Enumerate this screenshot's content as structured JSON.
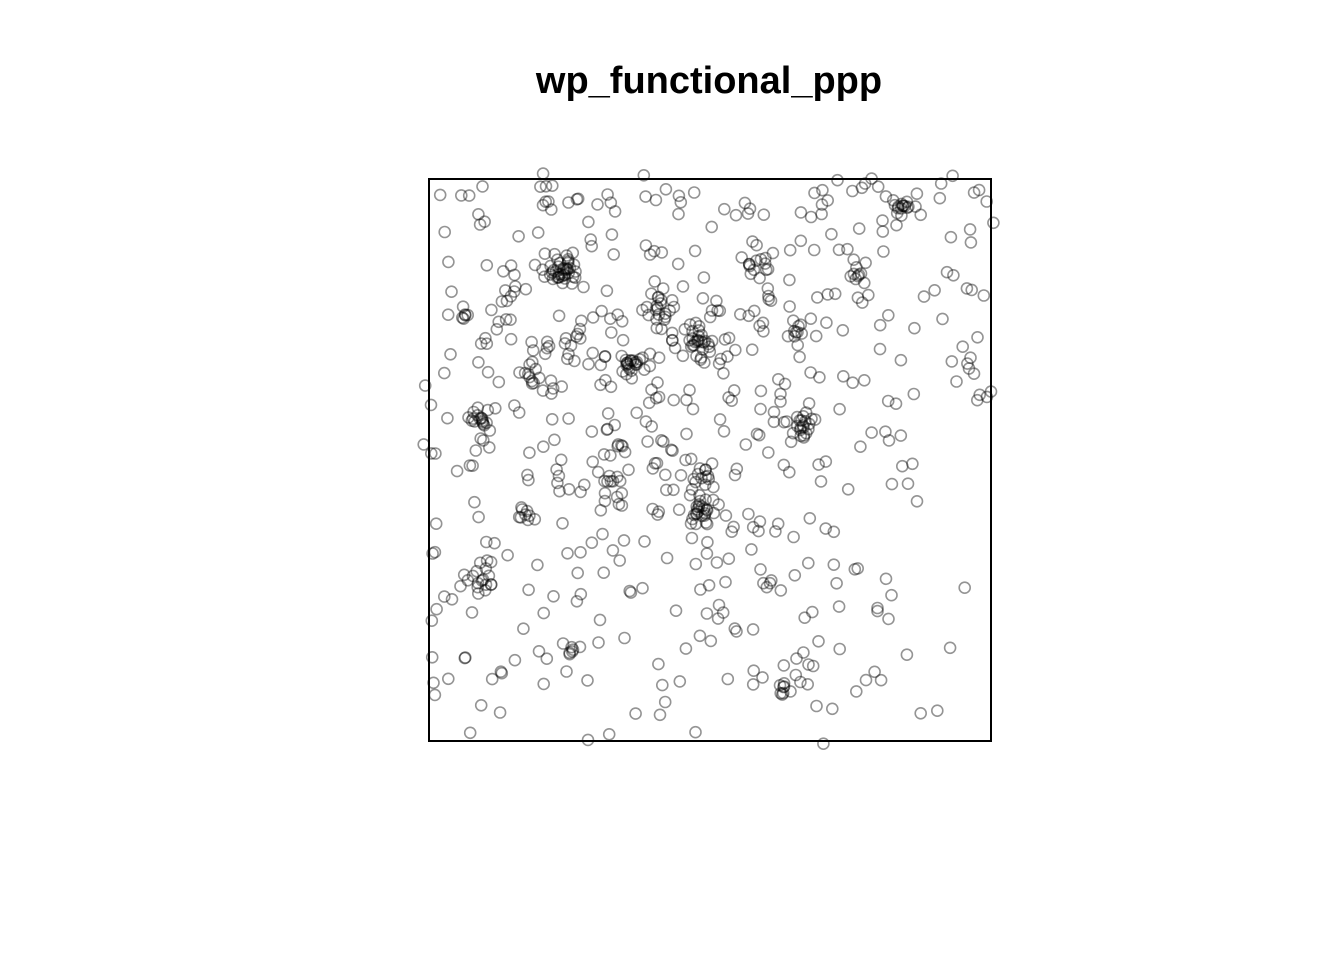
{
  "chart_data": {
    "type": "scatter",
    "title": "wp_functional_ppp",
    "xlabel": "",
    "ylabel": "",
    "axes_shown": false,
    "grid": false,
    "legend": "none",
    "marker": "open-circle",
    "xlim": [
      0,
      100
    ],
    "ylim": [
      0,
      100
    ],
    "colors": {
      "frame": "#000000",
      "point": "#000000",
      "background": "#ffffff"
    },
    "clusters": [
      {
        "x": 24,
        "y": 84,
        "n": 38,
        "spread": 1.3
      },
      {
        "x": 41,
        "y": 77,
        "n": 18,
        "spread": 1.6
      },
      {
        "x": 48,
        "y": 71,
        "n": 28,
        "spread": 1.6
      },
      {
        "x": 36,
        "y": 67,
        "n": 22,
        "spread": 1.2
      },
      {
        "x": 9,
        "y": 57,
        "n": 18,
        "spread": 1.2
      },
      {
        "x": 67,
        "y": 56,
        "n": 22,
        "spread": 1.4
      },
      {
        "x": 48,
        "y": 41,
        "n": 28,
        "spread": 1.7
      },
      {
        "x": 9,
        "y": 29,
        "n": 18,
        "spread": 1.4
      },
      {
        "x": 84,
        "y": 95,
        "n": 12,
        "spread": 0.8
      },
      {
        "x": 59,
        "y": 85,
        "n": 12,
        "spread": 1.5
      },
      {
        "x": 17,
        "y": 41,
        "n": 8,
        "spread": 1.0
      },
      {
        "x": 63,
        "y": 9,
        "n": 7,
        "spread": 0.5
      },
      {
        "x": 25,
        "y": 16,
        "n": 6,
        "spread": 0.6
      },
      {
        "x": 32,
        "y": 46,
        "n": 7,
        "spread": 0.9
      },
      {
        "x": 6,
        "y": 76,
        "n": 6,
        "spread": 0.8
      },
      {
        "x": 49,
        "y": 47,
        "n": 8,
        "spread": 1.0
      },
      {
        "x": 75,
        "y": 83,
        "n": 8,
        "spread": 1.2
      },
      {
        "x": 14,
        "y": 80,
        "n": 7,
        "spread": 1.2
      },
      {
        "x": 66,
        "y": 73,
        "n": 8,
        "spread": 1.3
      },
      {
        "x": 18,
        "y": 66,
        "n": 7,
        "spread": 1.0
      },
      {
        "x": 25,
        "y": 71,
        "n": 8,
        "spread": 1.4
      }
    ],
    "background_points": 520,
    "points": []
  }
}
